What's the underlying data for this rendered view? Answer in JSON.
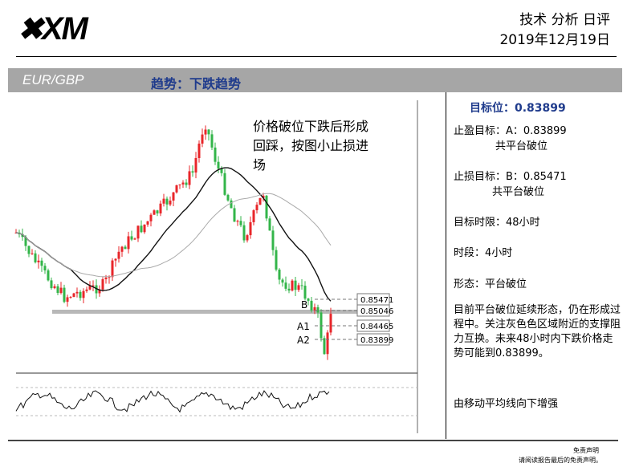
{
  "header": {
    "logo": "XM",
    "title": "技术 分析 日评",
    "date": "2019年12月19日"
  },
  "bar": {
    "pair": "EUR/GBP",
    "trend": "趋势：下跌趋势"
  },
  "chart": {
    "note": [
      "价格破位下跌后形成",
      "回踩，按图小止损进",
      "场"
    ],
    "levels": [
      {
        "tag": "B",
        "price": "0.85471"
      },
      {
        "tag": "",
        "price": "0.85046"
      },
      {
        "tag": "A1",
        "price": "0.84465"
      },
      {
        "tag": "A2",
        "price": "0.83899"
      }
    ]
  },
  "panel": {
    "target": "目标位：0.83899",
    "take_profit": [
      "止盈目标：A：0.83899",
      "共平台破位"
    ],
    "stop_loss": [
      "止损目标：B：0.85471",
      "共平台破位"
    ],
    "horizon": "目标时限：48小时",
    "period": "时段：4小时",
    "pattern": "形态：平台破位",
    "comment": "目前平台破位延续形态，仍在形成过程中。关注灰色色区域附近的支撑阻力互换。未来48小时内下跌价格走势可能到0.83899。",
    "ma": "由移动平均线向下增强"
  },
  "footer": {
    "title": "免责声明",
    "text": "请阅读报告最后的免责声明。"
  }
}
